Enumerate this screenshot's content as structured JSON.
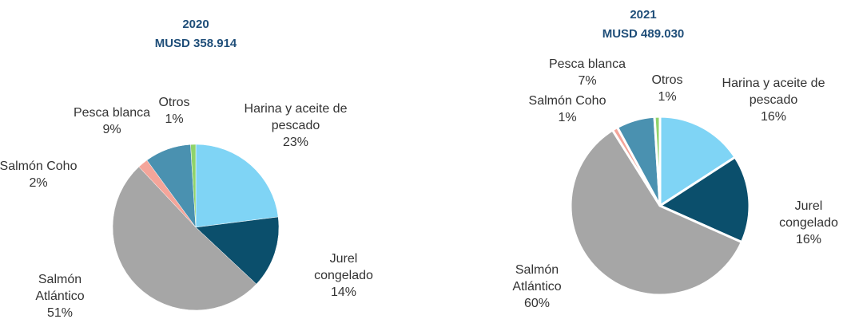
{
  "chart_data": [
    {
      "type": "pie",
      "title": "2020",
      "subtitle": "MUSD 358.914",
      "categories": [
        "Harina y aceite de pescado",
        "Jurel congelado",
        "Salmón Atlántico",
        "Salmón Coho",
        "Pesca blanca",
        "Otros"
      ],
      "values": [
        23,
        14,
        51,
        2,
        9,
        1
      ],
      "value_labels": [
        "23%",
        "14%",
        "51%",
        "2%",
        "9%",
        "1%"
      ],
      "colors": [
        "#7fd4f5",
        "#0b4f6c",
        "#a6a6a6",
        "#f4a59a",
        "#4a91b0",
        "#8fd36a"
      ]
    },
    {
      "type": "pie",
      "title": "2021",
      "subtitle": "MUSD 489.030",
      "categories": [
        "Harina y aceite de pescado",
        "Jurel congelado",
        "Salmón Atlántico",
        "Salmón Coho",
        "Pesca blanca",
        "Otros"
      ],
      "values": [
        16,
        16,
        60,
        1,
        7,
        1
      ],
      "value_labels": [
        "16%",
        "16%",
        "60%",
        "1%",
        "7%",
        "1%"
      ],
      "colors": [
        "#7fd4f5",
        "#0b4f6c",
        "#a6a6a6",
        "#f4a59a",
        "#4a91b0",
        "#8fd36a"
      ]
    }
  ]
}
